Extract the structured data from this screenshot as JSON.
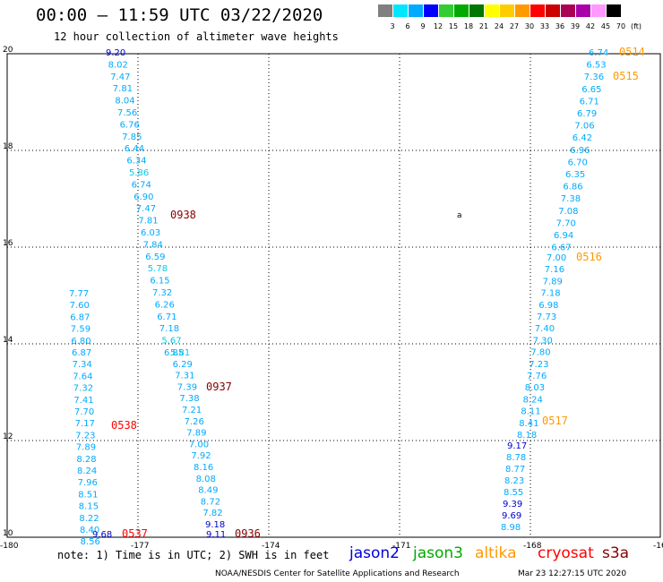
{
  "header": {
    "title": "00:00 – 11:59 UTC 03/22/2020",
    "subtitle": "12 hour collection of altimeter wave heights"
  },
  "color_scale": {
    "levels": [
      "3",
      "6",
      "9",
      "12",
      "15",
      "18",
      "21",
      "24",
      "27",
      "30",
      "33",
      "36",
      "39",
      "42",
      "45",
      "70"
    ],
    "colors": [
      "#808080",
      "#00e6ff",
      "#00aaff",
      "#0000ff",
      "#33cc33",
      "#00aa00",
      "#007700",
      "#ffff00",
      "#ffcc00",
      "#ff9900",
      "#ff0000",
      "#cc0000",
      "#aa0055",
      "#aa00aa",
      "#ff99ff",
      "#000000"
    ],
    "unit": "(ft)"
  },
  "map": {
    "lon_ticks": [
      "-180",
      "-177",
      "-174",
      "-171",
      "-168",
      "-16"
    ],
    "lat_ticks": [
      "10",
      "12",
      "14",
      "16",
      "18",
      "20"
    ],
    "marker": "a"
  },
  "tracks": [
    {
      "label": "0938",
      "label_color": "#880000",
      "label_index": 7,
      "points": [
        {
          "v": "9.20",
          "c": "#0000cc"
        },
        {
          "v": "8.02",
          "c": "#00aaff"
        },
        {
          "v": "7.47",
          "c": "#00aaff"
        },
        {
          "v": "7.81",
          "c": "#00aaff"
        },
        {
          "v": "8.04",
          "c": "#00aaff"
        },
        {
          "v": "7.56",
          "c": "#00aaff"
        },
        {
          "v": "6.76",
          "c": "#00aaff"
        },
        {
          "v": "7.85",
          "c": "#00aaff"
        },
        {
          "v": "6.44",
          "c": "#00aaff"
        },
        {
          "v": "6.34",
          "c": "#00aaff"
        },
        {
          "v": "5.86",
          "c": "#00ccee"
        },
        {
          "v": "6.74",
          "c": "#00aaff"
        },
        {
          "v": "6.90",
          "c": "#00aaff"
        },
        {
          "v": "7.47",
          "c": "#00aaff"
        },
        {
          "v": "7.81",
          "c": "#00aaff"
        },
        {
          "v": "6.03",
          "c": "#00aaff"
        },
        {
          "v": "7.84",
          "c": "#00aaff"
        },
        {
          "v": "6.59",
          "c": "#00aaff"
        },
        {
          "v": "5.78",
          "c": "#00ccee"
        },
        {
          "v": "6.15",
          "c": "#00aaff"
        },
        {
          "v": "7.32",
          "c": "#00aaff"
        },
        {
          "v": "6.26",
          "c": "#00aaff"
        },
        {
          "v": "6.71",
          "c": "#00aaff"
        },
        {
          "v": "7.18",
          "c": "#00aaff"
        },
        {
          "v": "5.67",
          "c": "#00ccee"
        },
        {
          "v": "6.85",
          "c": "#00aaff"
        }
      ]
    },
    {
      "label": "0937",
      "label_color": "#880000",
      "label_index": 3,
      "points": [
        {
          "v": "5.81",
          "c": "#00ccee"
        },
        {
          "v": "6.29",
          "c": "#00aaff"
        },
        {
          "v": "7.31",
          "c": "#00aaff"
        },
        {
          "v": "7.39",
          "c": "#00aaff"
        },
        {
          "v": "7.38",
          "c": "#00aaff"
        },
        {
          "v": "7.21",
          "c": "#00aaff"
        },
        {
          "v": "7.26",
          "c": "#00aaff"
        },
        {
          "v": "7.89",
          "c": "#00aaff"
        },
        {
          "v": "7.00",
          "c": "#00aaff"
        },
        {
          "v": "7.92",
          "c": "#00aaff"
        },
        {
          "v": "8.16",
          "c": "#00aaff"
        },
        {
          "v": "8.08",
          "c": "#00aaff"
        },
        {
          "v": "8.49",
          "c": "#00aaff"
        },
        {
          "v": "8.72",
          "c": "#00aaff"
        },
        {
          "v": "7.82",
          "c": "#00aaff"
        },
        {
          "v": "9.18",
          "c": "#0000cc"
        }
      ]
    },
    {
      "label": "0936",
      "label_color": "#880000",
      "label_index": 0,
      "points": [
        {
          "v": "9.11",
          "c": "#0000cc"
        }
      ]
    },
    {
      "label": "0538",
      "label_color": "#ff0000",
      "label_index": 11,
      "points": [
        {
          "v": "7.77",
          "c": "#00aaff"
        },
        {
          "v": "7.60",
          "c": "#00aaff"
        },
        {
          "v": "6.87",
          "c": "#00aaff"
        },
        {
          "v": "7.59",
          "c": "#00aaff"
        },
        {
          "v": "6.80",
          "c": "#00aaff"
        },
        {
          "v": "6.87",
          "c": "#00aaff"
        },
        {
          "v": "7.34",
          "c": "#00aaff"
        },
        {
          "v": "7.64",
          "c": "#00aaff"
        },
        {
          "v": "7.32",
          "c": "#00aaff"
        },
        {
          "v": "7.41",
          "c": "#00aaff"
        },
        {
          "v": "7.70",
          "c": "#00aaff"
        },
        {
          "v": "7.17",
          "c": "#00aaff"
        },
        {
          "v": "7.23",
          "c": "#00aaff"
        },
        {
          "v": "7.89",
          "c": "#00aaff"
        },
        {
          "v": "8.28",
          "c": "#00aaff"
        },
        {
          "v": "8.24",
          "c": "#00aaff"
        },
        {
          "v": "7.96",
          "c": "#00aaff"
        },
        {
          "v": "8.51",
          "c": "#00aaff"
        },
        {
          "v": "8.15",
          "c": "#00aaff"
        },
        {
          "v": "8.22",
          "c": "#00aaff"
        },
        {
          "v": "8.40",
          "c": "#00aaff"
        },
        {
          "v": "8.56",
          "c": "#00aaff"
        }
      ]
    },
    {
      "label": "0537",
      "label_color": "#ff0000",
      "label_index": 0,
      "points": [
        {
          "v": "9.68",
          "c": "#0000cc"
        }
      ]
    },
    {
      "label": "0514",
      "label_color": "#ff9900",
      "label_index": 0,
      "points": [
        {
          "v": "6.74",
          "c": "#00aaff"
        },
        {
          "v": "6.53",
          "c": "#00aaff"
        },
        {
          "v": "7.36",
          "c": "#00aaff"
        },
        {
          "v": "6.65",
          "c": "#00aaff"
        },
        {
          "v": "6.71",
          "c": "#00aaff"
        },
        {
          "v": "6.79",
          "c": "#00aaff"
        },
        {
          "v": "7.06",
          "c": "#00aaff"
        },
        {
          "v": "6.42",
          "c": "#00aaff"
        },
        {
          "v": "6.96",
          "c": "#00aaff"
        },
        {
          "v": "6.70",
          "c": "#00aaff"
        },
        {
          "v": "6.35",
          "c": "#00aaff"
        },
        {
          "v": "6.86",
          "c": "#00aaff"
        },
        {
          "v": "7.38",
          "c": "#00aaff"
        },
        {
          "v": "7.08",
          "c": "#00aaff"
        },
        {
          "v": "7.70",
          "c": "#00aaff"
        },
        {
          "v": "6.94",
          "c": "#00aaff"
        },
        {
          "v": "6.67",
          "c": "#00aaff"
        }
      ]
    },
    {
      "label": "0516",
      "label_color": "#ff9900",
      "label_index": 0,
      "points": [
        {
          "v": "7.00",
          "c": "#00aaff"
        },
        {
          "v": "7.16",
          "c": "#00aaff"
        },
        {
          "v": "7.89",
          "c": "#00aaff"
        },
        {
          "v": "7.18",
          "c": "#00aaff"
        },
        {
          "v": "6.98",
          "c": "#00aaff"
        },
        {
          "v": "7.73",
          "c": "#00aaff"
        },
        {
          "v": "7.40",
          "c": "#00aaff"
        },
        {
          "v": "7.30",
          "c": "#00aaff"
        },
        {
          "v": "7.80",
          "c": "#00aaff"
        },
        {
          "v": "7.23",
          "c": "#00aaff"
        },
        {
          "v": "7.76",
          "c": "#00aaff"
        },
        {
          "v": "8.03",
          "c": "#00aaff"
        },
        {
          "v": "8.24",
          "c": "#00aaff"
        },
        {
          "v": "8.11",
          "c": "#00aaff"
        },
        {
          "v": "8.41",
          "c": "#00aaff"
        },
        {
          "v": "8.18",
          "c": "#00aaff"
        }
      ]
    },
    {
      "label": "0517",
      "label_color": "#ff9900",
      "label_index": 14,
      "points": [
        {
          "v": "9.17",
          "c": "#0000cc"
        },
        {
          "v": "8.78",
          "c": "#00aaff"
        },
        {
          "v": "8.77",
          "c": "#00aaff"
        },
        {
          "v": "8.23",
          "c": "#00aaff"
        },
        {
          "v": "8.55",
          "c": "#00aaff"
        },
        {
          "v": "9.39",
          "c": "#0000cc"
        },
        {
          "v": "9.69",
          "c": "#0000cc"
        },
        {
          "v": "8.98",
          "c": "#00aaff"
        }
      ]
    },
    {
      "label": "0515",
      "label_color": "#ff9900",
      "label_index": 0,
      "points": []
    }
  ],
  "footer": {
    "note": "note: 1) Time is in UTC; 2) SWH is in feet",
    "satellites": [
      {
        "name": "jason2",
        "color": "#0000dd"
      },
      {
        "name": "jason3",
        "color": "#00aa00"
      },
      {
        "name": "altika",
        "color": "#ff9900"
      },
      {
        "name": "cryosat",
        "color": "#ff0000"
      },
      {
        "name": "s3a",
        "color": "#880000"
      }
    ],
    "credit": "NOAA/NESDIS Center for Satellite Applications and Research",
    "timestamp": "Mar 23 12:27:15 UTC 2020"
  }
}
